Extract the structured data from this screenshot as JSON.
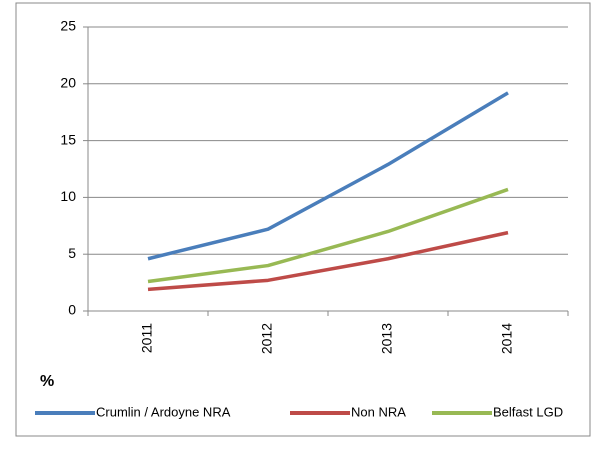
{
  "chart_data": {
    "type": "line",
    "y_label": "%",
    "categories": [
      "2011",
      "2012",
      "2013",
      "2014"
    ],
    "series": [
      {
        "name": "Crumlin / Ardoyne NRA",
        "color": "#4a7ebb",
        "values": [
          4.6,
          7.2,
          12.9,
          19.2
        ]
      },
      {
        "name": "Non NRA",
        "color": "#be4b48",
        "values": [
          1.9,
          2.7,
          4.6,
          6.9
        ]
      },
      {
        "name": "Belfast LGD",
        "color": "#98b954",
        "values": [
          2.6,
          4.0,
          7.0,
          10.7
        ]
      }
    ],
    "ylim": [
      0,
      25
    ],
    "yticks": [
      0,
      5,
      10,
      15,
      20,
      25
    ],
    "grid": true,
    "legend": "bottom"
  }
}
